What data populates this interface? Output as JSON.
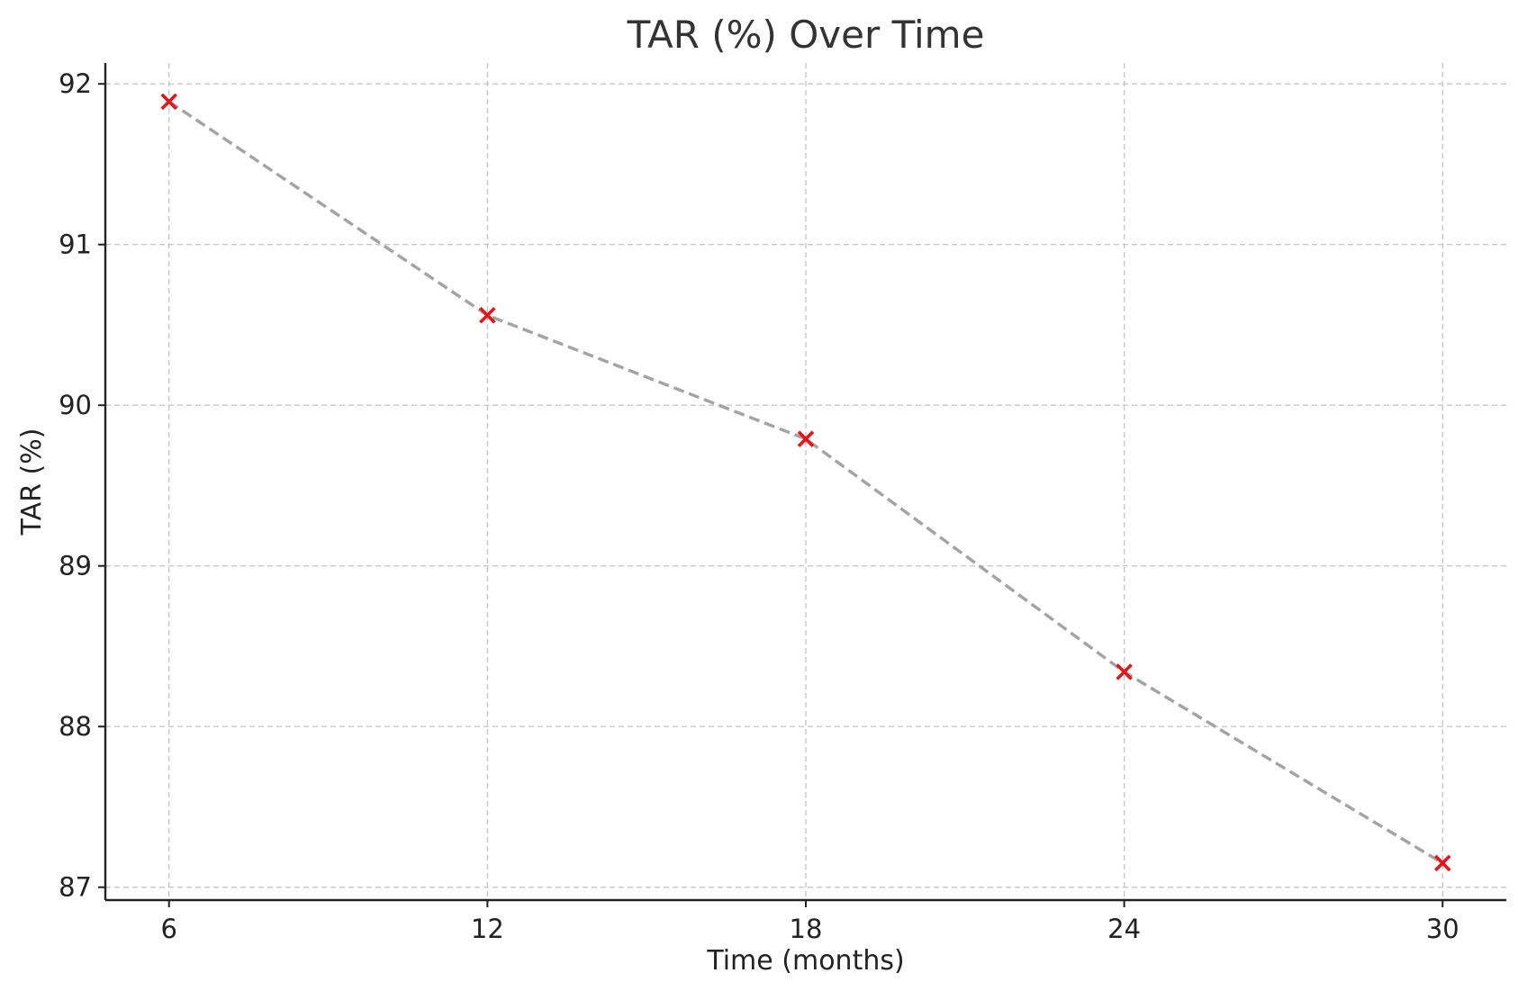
{
  "chart_data": {
    "type": "line",
    "title": "TAR (%) Over Time",
    "xlabel": "Time (months)",
    "ylabel": "TAR (%)",
    "x": [
      6,
      12,
      18,
      24,
      30
    ],
    "x_ticks": [
      "6",
      "12",
      "18",
      "24",
      "30"
    ],
    "y_ticks": [
      "87",
      "88",
      "89",
      "90",
      "91",
      "92"
    ],
    "xlim": [
      4.8,
      31.2
    ],
    "ylim": [
      86.92,
      92.13
    ],
    "grid": true,
    "series": [
      {
        "values": [
          91.89,
          90.56,
          89.79,
          88.34,
          87.15
        ],
        "line_color": "#a3a3a3",
        "line_style": "dashed",
        "marker": "x",
        "marker_color": "#e3161b"
      }
    ]
  }
}
